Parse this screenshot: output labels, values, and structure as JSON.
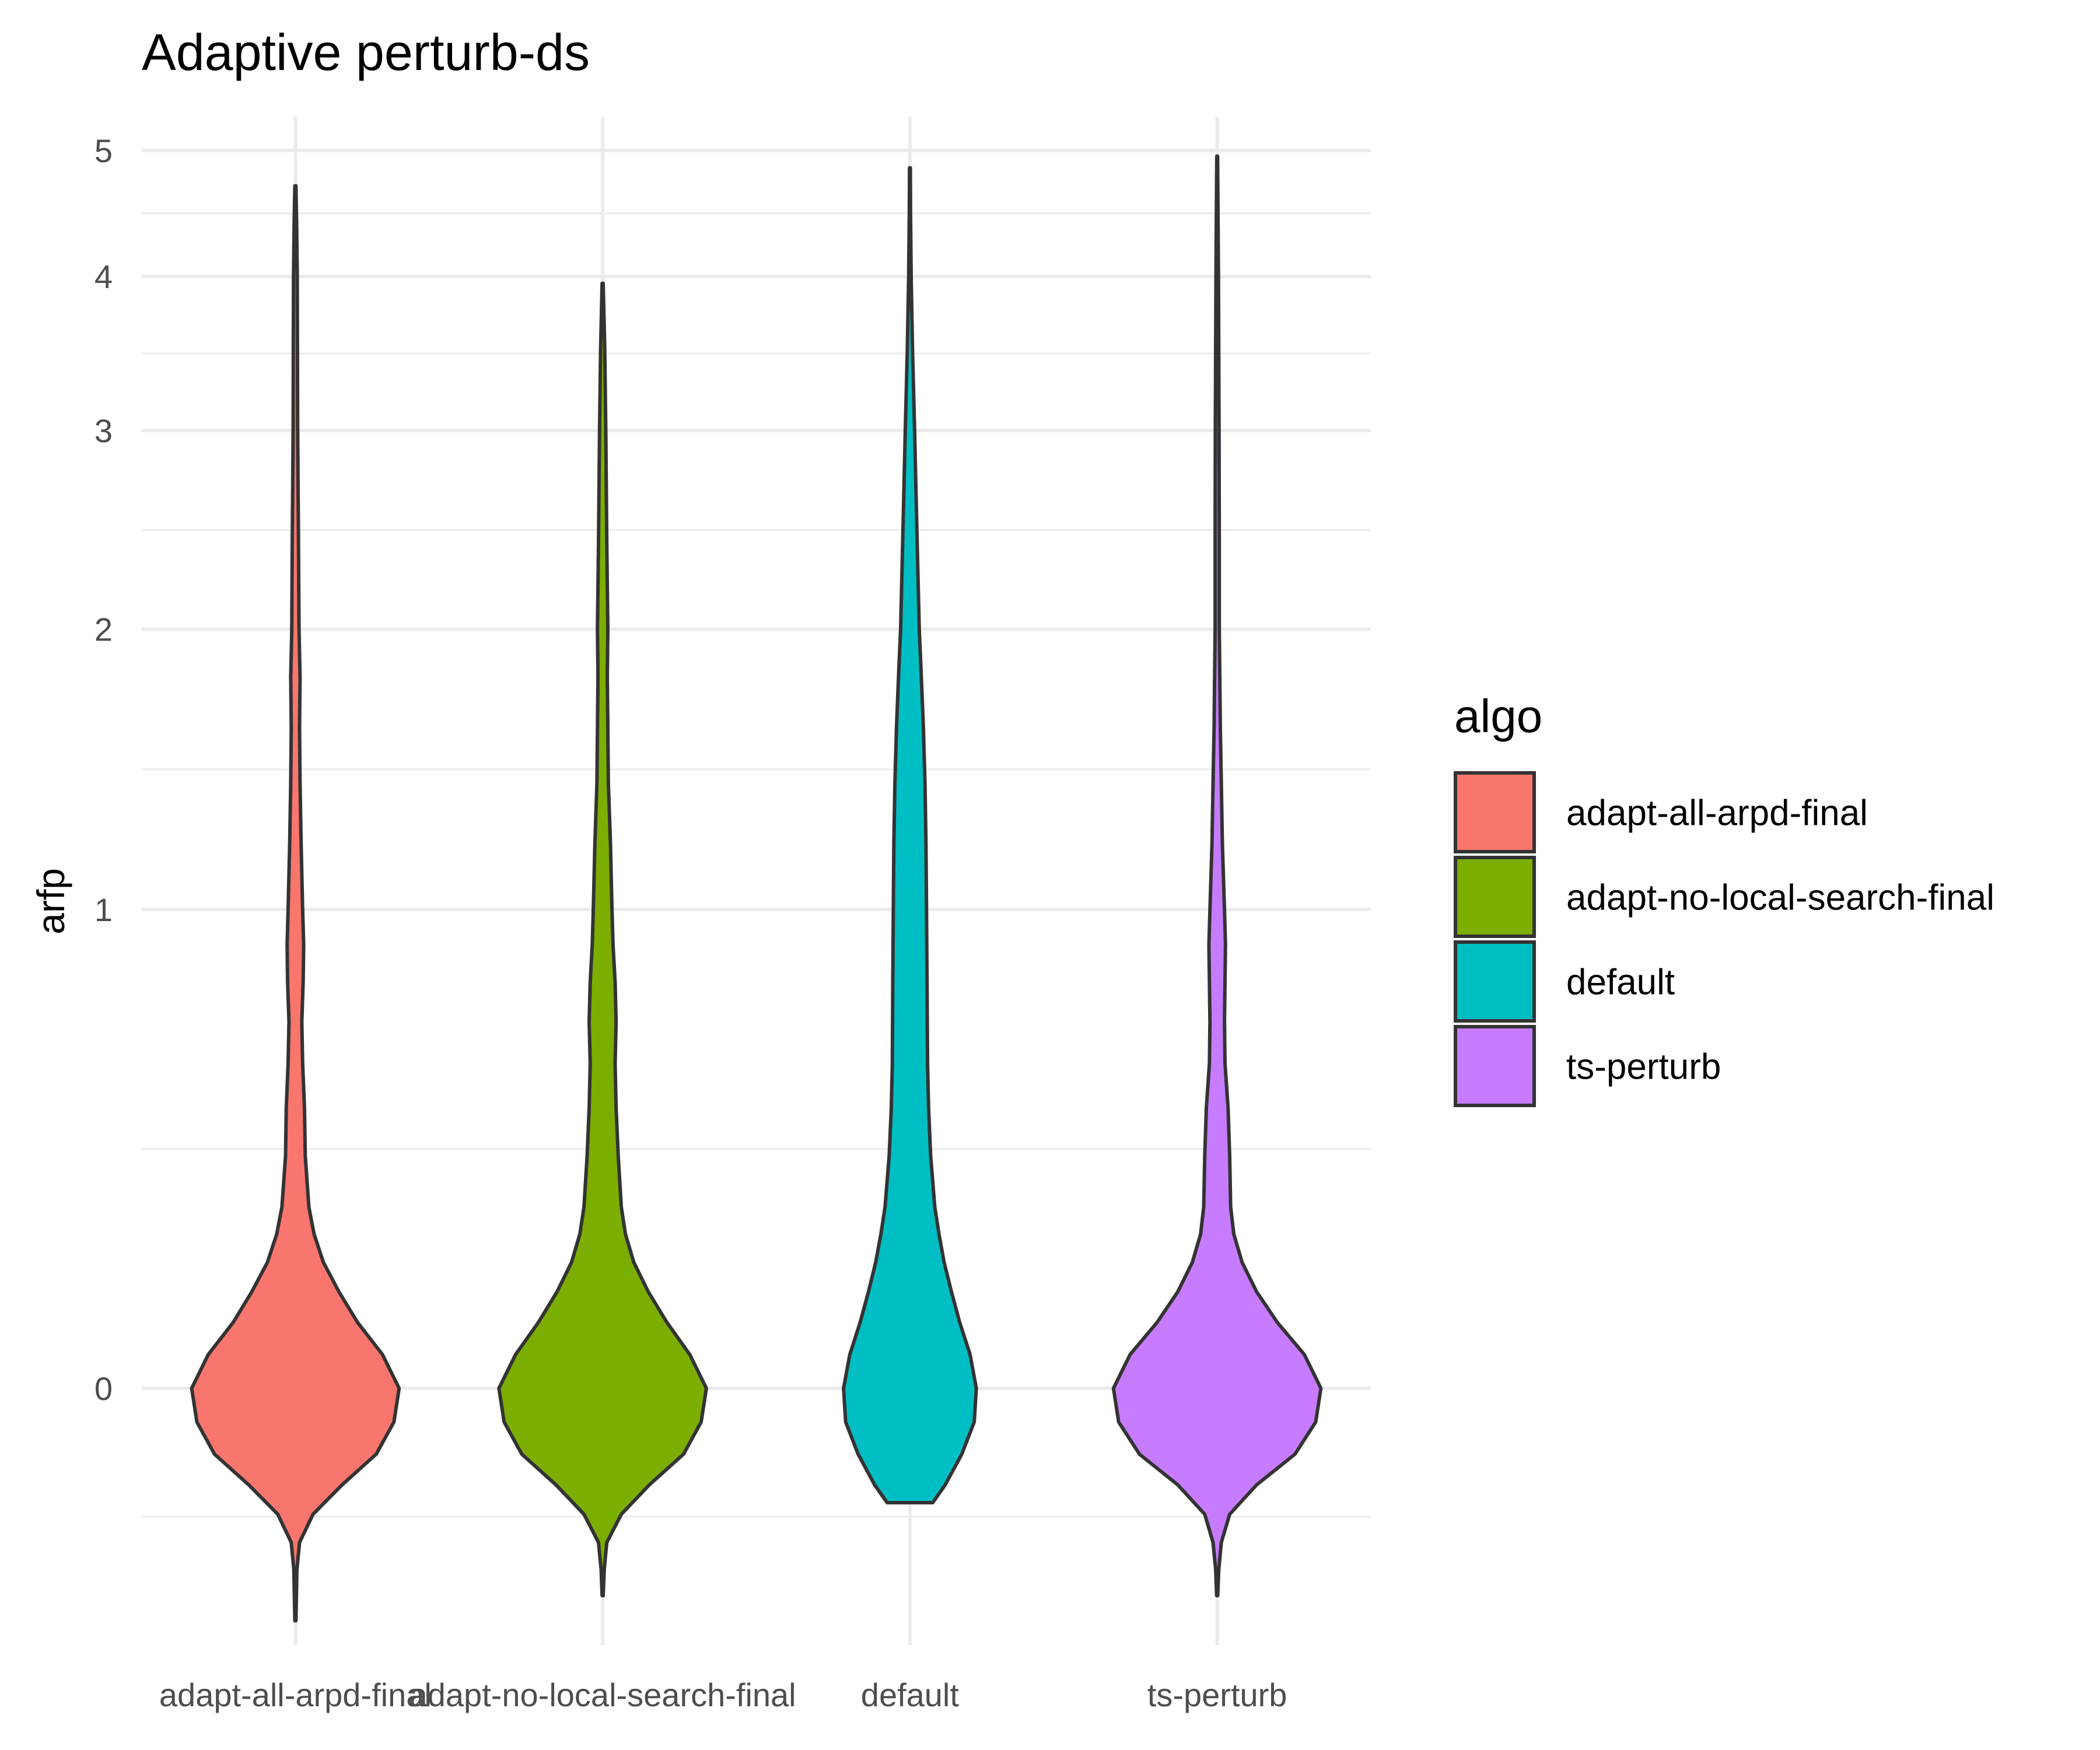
{
  "chart_data": {
    "type": "violin",
    "title": "Adaptive perturb-ds",
    "xlabel": "",
    "ylabel": "arfp",
    "y_scale": "pseudo_log",
    "y_ticks": [
      0,
      1,
      2,
      3,
      4,
      5
    ],
    "ylim": [
      -0.45,
      5.3
    ],
    "grid": true,
    "legend": {
      "title": "algo",
      "position": "right"
    },
    "series": [
      {
        "name": "adapt-all-arpd-final",
        "color": "#F8766D",
        "min": -0.4,
        "max": 4.7,
        "profile": [
          [
            -0.4,
            0.005
          ],
          [
            -0.3,
            0.015
          ],
          [
            -0.25,
            0.04
          ],
          [
            -0.2,
            0.17
          ],
          [
            -0.15,
            0.45
          ],
          [
            -0.1,
            0.78
          ],
          [
            -0.05,
            0.95
          ],
          [
            0.0,
            1.0
          ],
          [
            0.05,
            0.84
          ],
          [
            0.1,
            0.6
          ],
          [
            0.15,
            0.42
          ],
          [
            0.2,
            0.27
          ],
          [
            0.25,
            0.18
          ],
          [
            0.3,
            0.13
          ],
          [
            0.4,
            0.095
          ],
          [
            0.5,
            0.088
          ],
          [
            0.6,
            0.07
          ],
          [
            0.7,
            0.062
          ],
          [
            0.8,
            0.075
          ],
          [
            0.9,
            0.08
          ],
          [
            1.0,
            0.07
          ],
          [
            1.2,
            0.055
          ],
          [
            1.4,
            0.045
          ],
          [
            1.6,
            0.04
          ],
          [
            1.8,
            0.045
          ],
          [
            2.0,
            0.035
          ],
          [
            2.4,
            0.03
          ],
          [
            3.0,
            0.022
          ],
          [
            3.5,
            0.02
          ],
          [
            4.0,
            0.018
          ],
          [
            4.4,
            0.012
          ],
          [
            4.7,
            0.005
          ]
        ]
      },
      {
        "name": "adapt-no-local-search-final",
        "color": "#7CAE00",
        "min": -0.35,
        "max": 3.95,
        "profile": [
          [
            -0.35,
            0.005
          ],
          [
            -0.3,
            0.015
          ],
          [
            -0.25,
            0.04
          ],
          [
            -0.2,
            0.18
          ],
          [
            -0.15,
            0.45
          ],
          [
            -0.1,
            0.78
          ],
          [
            -0.05,
            0.95
          ],
          [
            0.0,
            1.0
          ],
          [
            0.05,
            0.84
          ],
          [
            0.1,
            0.62
          ],
          [
            0.15,
            0.44
          ],
          [
            0.2,
            0.3
          ],
          [
            0.25,
            0.22
          ],
          [
            0.3,
            0.18
          ],
          [
            0.4,
            0.15
          ],
          [
            0.5,
            0.13
          ],
          [
            0.6,
            0.12
          ],
          [
            0.7,
            0.13
          ],
          [
            0.8,
            0.12
          ],
          [
            0.9,
            0.1
          ],
          [
            1.0,
            0.09
          ],
          [
            1.2,
            0.075
          ],
          [
            1.4,
            0.055
          ],
          [
            1.6,
            0.05
          ],
          [
            1.8,
            0.045
          ],
          [
            2.0,
            0.05
          ],
          [
            2.4,
            0.04
          ],
          [
            3.0,
            0.03
          ],
          [
            3.5,
            0.02
          ],
          [
            3.95,
            0.005
          ]
        ]
      },
      {
        "name": "default",
        "color": "#00BFC4",
        "min": -0.18,
        "max": 4.85,
        "profile": [
          [
            -0.18,
            0.22
          ],
          [
            -0.15,
            0.34
          ],
          [
            -0.1,
            0.5
          ],
          [
            -0.05,
            0.62
          ],
          [
            0.0,
            0.64
          ],
          [
            0.05,
            0.58
          ],
          [
            0.1,
            0.48
          ],
          [
            0.15,
            0.4
          ],
          [
            0.2,
            0.33
          ],
          [
            0.25,
            0.28
          ],
          [
            0.3,
            0.24
          ],
          [
            0.4,
            0.2
          ],
          [
            0.5,
            0.18
          ],
          [
            0.6,
            0.17
          ],
          [
            0.8,
            0.165
          ],
          [
            1.0,
            0.16
          ],
          [
            1.2,
            0.155
          ],
          [
            1.4,
            0.145
          ],
          [
            1.6,
            0.13
          ],
          [
            1.8,
            0.11
          ],
          [
            2.0,
            0.09
          ],
          [
            2.4,
            0.07
          ],
          [
            3.0,
            0.045
          ],
          [
            3.5,
            0.025
          ],
          [
            4.0,
            0.012
          ],
          [
            4.5,
            0.006
          ],
          [
            4.85,
            0.004
          ]
        ]
      },
      {
        "name": "ts-perturb",
        "color": "#C77CFF",
        "min": -0.35,
        "max": 4.95,
        "profile": [
          [
            -0.35,
            0.005
          ],
          [
            -0.3,
            0.015
          ],
          [
            -0.25,
            0.04
          ],
          [
            -0.2,
            0.12
          ],
          [
            -0.15,
            0.38
          ],
          [
            -0.1,
            0.75
          ],
          [
            -0.05,
            0.95
          ],
          [
            0.0,
            1.0
          ],
          [
            0.05,
            0.84
          ],
          [
            0.1,
            0.58
          ],
          [
            0.15,
            0.38
          ],
          [
            0.2,
            0.24
          ],
          [
            0.25,
            0.16
          ],
          [
            0.3,
            0.13
          ],
          [
            0.4,
            0.12
          ],
          [
            0.5,
            0.105
          ],
          [
            0.6,
            0.075
          ],
          [
            0.7,
            0.07
          ],
          [
            0.8,
            0.075
          ],
          [
            0.9,
            0.08
          ],
          [
            1.0,
            0.07
          ],
          [
            1.2,
            0.05
          ],
          [
            1.4,
            0.04
          ],
          [
            1.6,
            0.03
          ],
          [
            1.8,
            0.025
          ],
          [
            2.0,
            0.02
          ],
          [
            2.4,
            0.02
          ],
          [
            3.0,
            0.018
          ],
          [
            3.5,
            0.015
          ],
          [
            4.0,
            0.012
          ],
          [
            4.5,
            0.008
          ],
          [
            4.95,
            0.004
          ]
        ]
      }
    ]
  }
}
